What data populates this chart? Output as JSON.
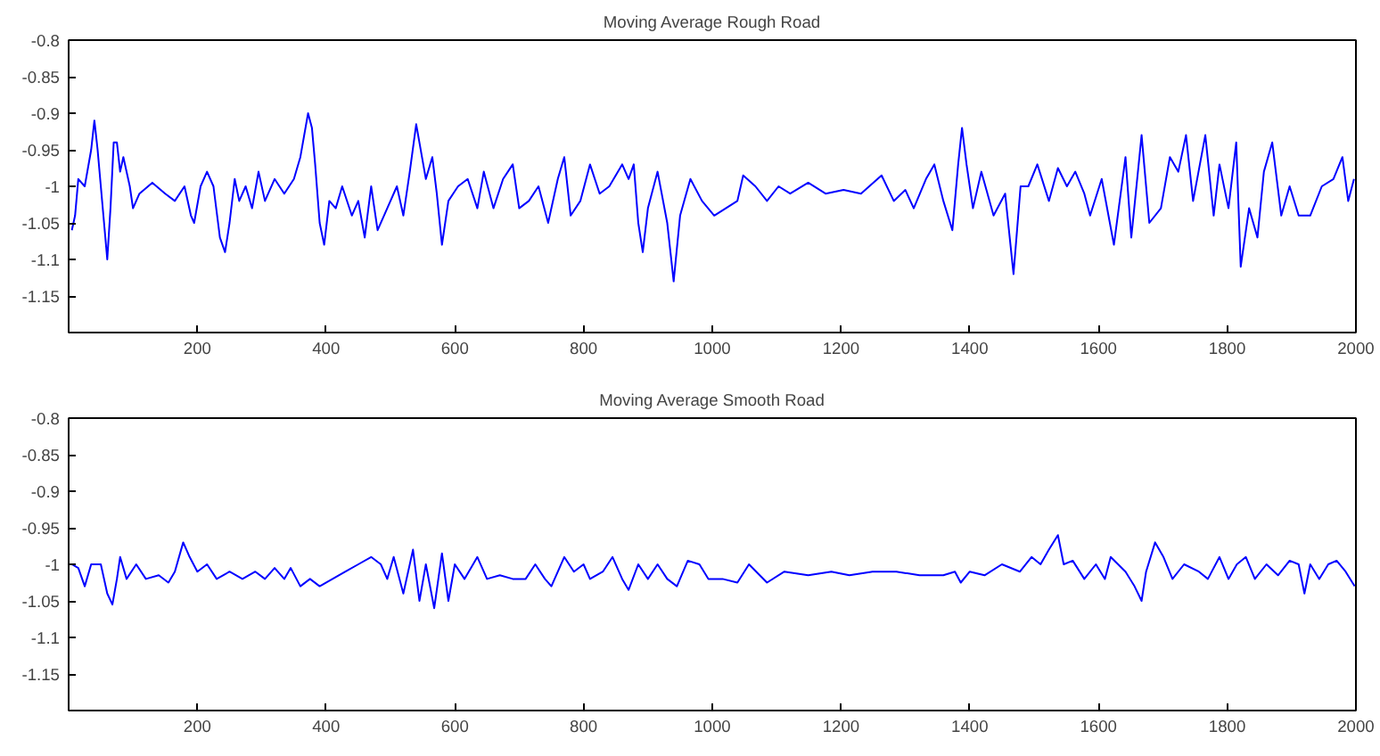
{
  "chart_data": [
    {
      "type": "line",
      "title": "Moving Average Rough Road",
      "xlim": [
        0,
        2000
      ],
      "ylim": [
        -1.2,
        -0.8
      ],
      "xticks": [
        200,
        400,
        600,
        800,
        1000,
        1200,
        1400,
        1600,
        1800,
        2000
      ],
      "yticks": [
        -0.8,
        -0.85,
        -0.9,
        -0.95,
        -1,
        -1.05,
        -1.1,
        -1.15
      ],
      "series": [
        {
          "color": "#0000ff",
          "x": [
            5,
            10,
            15,
            25,
            35,
            40,
            45,
            50,
            55,
            60,
            65,
            70,
            75,
            80,
            85,
            95,
            100,
            110,
            130,
            150,
            165,
            180,
            190,
            195,
            205,
            215,
            225,
            235,
            243,
            250,
            258,
            265,
            275,
            285,
            295,
            305,
            320,
            335,
            350,
            360,
            372,
            378,
            383,
            390,
            397,
            405,
            415,
            425,
            440,
            450,
            460,
            470,
            480,
            495,
            510,
            520,
            530,
            540,
            545,
            555,
            565,
            572,
            580,
            590,
            605,
            620,
            635,
            645,
            660,
            675,
            690,
            700,
            715,
            730,
            745,
            760,
            770,
            780,
            795,
            810,
            825,
            840,
            860,
            870,
            878,
            885,
            892,
            900,
            915,
            930,
            940,
            950,
            966,
            984,
            1003,
            1021,
            1039,
            1048,
            1067,
            1085,
            1103,
            1121,
            1149,
            1176,
            1204,
            1231,
            1263,
            1282,
            1300,
            1313,
            1332,
            1345,
            1359,
            1373,
            1382,
            1388,
            1395,
            1405,
            1418,
            1437,
            1455,
            1468,
            1479,
            1491,
            1505,
            1523,
            1537,
            1551,
            1564,
            1578,
            1587,
            1605,
            1624,
            1642,
            1651,
            1667,
            1679,
            1697,
            1711,
            1724,
            1736,
            1747,
            1766,
            1779,
            1788,
            1802,
            1814,
            1821,
            1834,
            1847,
            1857,
            1870,
            1884,
            1897,
            1911,
            1929,
            1947,
            1965,
            1979,
            1988,
            1997
          ],
          "values": [
            -1.06,
            -1.04,
            -0.99,
            -1.0,
            -0.95,
            -0.91,
            -0.95,
            -1.0,
            -1.05,
            -1.1,
            -1.03,
            -0.94,
            -0.94,
            -0.98,
            -0.96,
            -1.0,
            -1.03,
            -1.01,
            -0.995,
            -1.01,
            -1.02,
            -1.0,
            -1.04,
            -1.05,
            -1.0,
            -0.98,
            -1.0,
            -1.07,
            -1.09,
            -1.05,
            -0.99,
            -1.02,
            -1.0,
            -1.03,
            -0.98,
            -1.02,
            -0.99,
            -1.01,
            -0.99,
            -0.96,
            -0.9,
            -0.92,
            -0.97,
            -1.05,
            -1.08,
            -1.02,
            -1.03,
            -1.0,
            -1.04,
            -1.02,
            -1.07,
            -1.0,
            -1.06,
            -1.03,
            -1.0,
            -1.04,
            -0.98,
            -0.915,
            -0.94,
            -0.99,
            -0.96,
            -1.01,
            -1.08,
            -1.02,
            -1.0,
            -0.99,
            -1.03,
            -0.98,
            -1.03,
            -0.99,
            -0.97,
            -1.03,
            -1.02,
            -1.0,
            -1.05,
            -0.99,
            -0.96,
            -1.04,
            -1.02,
            -0.97,
            -1.01,
            -1.0,
            -0.97,
            -0.99,
            -0.97,
            -1.05,
            -1.09,
            -1.03,
            -0.98,
            -1.05,
            -1.13,
            -1.04,
            -0.99,
            -1.02,
            -1.04,
            -1.03,
            -1.02,
            -0.985,
            -1.0,
            -1.02,
            -1.0,
            -1.01,
            -0.995,
            -1.01,
            -1.005,
            -1.01,
            -0.985,
            -1.02,
            -1.005,
            -1.03,
            -0.99,
            -0.97,
            -1.02,
            -1.06,
            -0.97,
            -0.92,
            -0.97,
            -1.03,
            -0.98,
            -1.04,
            -1.01,
            -1.12,
            -1.0,
            -1.0,
            -0.97,
            -1.02,
            -0.975,
            -1.0,
            -0.98,
            -1.01,
            -1.04,
            -0.99,
            -1.08,
            -0.96,
            -1.07,
            -0.93,
            -1.05,
            -1.03,
            -0.96,
            -0.98,
            -0.93,
            -1.02,
            -0.93,
            -1.04,
            -0.97,
            -1.03,
            -0.94,
            -1.11,
            -1.03,
            -1.07,
            -0.98,
            -0.94,
            -1.04,
            -1.0,
            -1.04,
            -1.04,
            -1.0,
            -0.99,
            -0.96,
            -1.02,
            -0.99
          ]
        }
      ]
    },
    {
      "type": "line",
      "title": "Moving Average Smooth Road",
      "xlim": [
        0,
        2000
      ],
      "ylim": [
        -1.2,
        -0.8
      ],
      "xticks": [
        200,
        400,
        600,
        800,
        1000,
        1200,
        1400,
        1600,
        1800,
        2000
      ],
      "yticks": [
        -0.8,
        -0.85,
        -0.9,
        -0.95,
        -1,
        -1.05,
        -1.1,
        -1.15
      ],
      "series": [
        {
          "color": "#0000ff",
          "x": [
            5,
            15,
            25,
            35,
            50,
            60,
            68,
            75,
            80,
            90,
            105,
            120,
            140,
            155,
            165,
            178,
            188,
            200,
            215,
            230,
            250,
            270,
            290,
            305,
            320,
            335,
            345,
            360,
            375,
            390,
            410,
            430,
            450,
            470,
            485,
            495,
            505,
            520,
            535,
            545,
            555,
            568,
            580,
            590,
            600,
            615,
            635,
            650,
            670,
            690,
            710,
            725,
            740,
            750,
            770,
            785,
            800,
            810,
            830,
            845,
            860,
            870,
            885,
            900,
            915,
            930,
            945,
            962,
            980,
            994,
            1016,
            1039,
            1057,
            1085,
            1112,
            1149,
            1185,
            1213,
            1249,
            1286,
            1322,
            1359,
            1377,
            1386,
            1400,
            1423,
            1450,
            1478,
            1496,
            1510,
            1523,
            1537,
            1546,
            1560,
            1578,
            1596,
            1610,
            1619,
            1642,
            1656,
            1667,
            1674,
            1688,
            1701,
            1715,
            1733,
            1756,
            1770,
            1788,
            1802,
            1815,
            1829,
            1843,
            1861,
            1879,
            1897,
            1911,
            1920,
            1929,
            1943,
            1957,
            1970,
            1984,
            1998
          ],
          "values": [
            -1.0,
            -1.005,
            -1.03,
            -1.0,
            -1.0,
            -1.04,
            -1.055,
            -1.02,
            -0.99,
            -1.02,
            -1.0,
            -1.02,
            -1.015,
            -1.025,
            -1.01,
            -0.97,
            -0.99,
            -1.01,
            -1.0,
            -1.02,
            -1.01,
            -1.02,
            -1.01,
            -1.02,
            -1.005,
            -1.02,
            -1.005,
            -1.03,
            -1.02,
            -1.03,
            -1.02,
            -1.01,
            -1.0,
            -0.99,
            -1.0,
            -1.02,
            -0.99,
            -1.04,
            -0.98,
            -1.05,
            -1.0,
            -1.06,
            -0.985,
            -1.05,
            -1.0,
            -1.02,
            -0.99,
            -1.02,
            -1.015,
            -1.02,
            -1.02,
            -1.0,
            -1.02,
            -1.03,
            -0.99,
            -1.01,
            -1.0,
            -1.02,
            -1.01,
            -0.99,
            -1.02,
            -1.035,
            -1.0,
            -1.02,
            -1.0,
            -1.02,
            -1.03,
            -0.995,
            -1.0,
            -1.02,
            -1.02,
            -1.025,
            -1.0,
            -1.025,
            -1.01,
            -1.015,
            -1.01,
            -1.015,
            -1.01,
            -1.01,
            -1.015,
            -1.015,
            -1.01,
            -1.025,
            -1.01,
            -1.015,
            -1.0,
            -1.01,
            -0.99,
            -1.0,
            -0.98,
            -0.96,
            -1.0,
            -0.995,
            -1.02,
            -1.0,
            -1.02,
            -0.99,
            -1.01,
            -1.03,
            -1.05,
            -1.01,
            -0.97,
            -0.99,
            -1.02,
            -1.0,
            -1.01,
            -1.02,
            -0.99,
            -1.02,
            -1.0,
            -0.99,
            -1.02,
            -1.0,
            -1.015,
            -0.995,
            -1.0,
            -1.04,
            -1.0,
            -1.02,
            -1.0,
            -0.995,
            -1.01,
            -1.03
          ]
        }
      ]
    }
  ]
}
